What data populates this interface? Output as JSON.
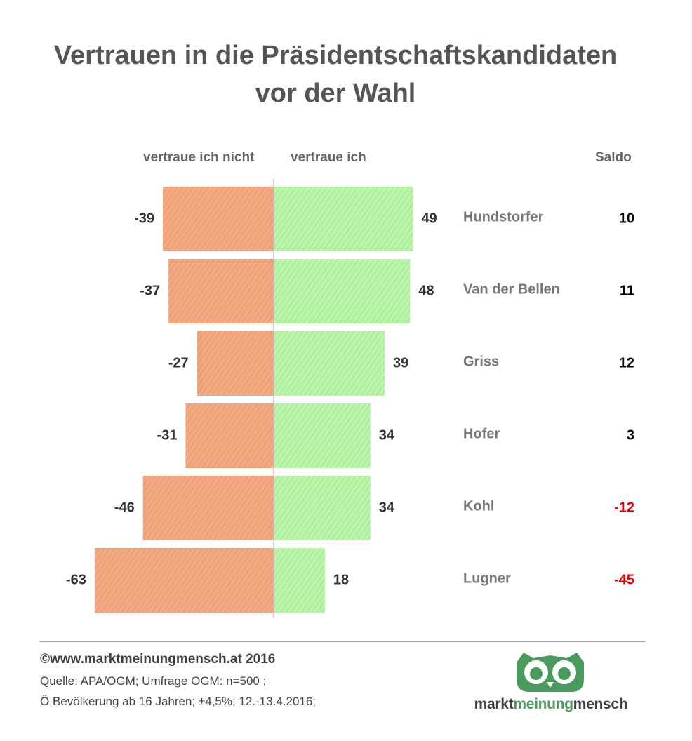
{
  "title": {
    "line1": "Vertrauen in die Präsidentschaftskandidaten",
    "line2": "vor der Wahl"
  },
  "headers": {
    "negative": "vertraue ich nicht",
    "positive": "vertraue ich",
    "saldo": "Saldo"
  },
  "chart_data": {
    "type": "bar",
    "orientation": "horizontal-diverging",
    "categories": [
      "Hundstorfer",
      "Van der Bellen",
      "Griss",
      "Hofer",
      "Kohl",
      "Lugner"
    ],
    "series": [
      {
        "name": "vertraue ich nicht",
        "values": [
          -39,
          -37,
          -27,
          -31,
          -46,
          -63
        ]
      },
      {
        "name": "vertraue ich",
        "values": [
          49,
          48,
          39,
          34,
          34,
          18
        ]
      }
    ],
    "saldo": [
      10,
      11,
      12,
      3,
      -12,
      -45
    ],
    "colors": {
      "negative": "#f4a882",
      "positive": "#b9f5a8",
      "saldo_positive": "#000000",
      "saldo_negative": "#e00000",
      "category_label": "#777777"
    }
  },
  "footer": {
    "copyright": "©www.marktmeinungmensch.at 2016",
    "source_line1": "Quelle: APA/OGM; Umfrage OGM: n=500 ;",
    "source_line2": "Ö Bevölkerung ab 16 Jahren; ±4,5%; 12.-13.4.2016;"
  },
  "logo": {
    "part1": "markt",
    "part2": "meinung",
    "part3": "mensch",
    "icon": "owl-icon",
    "color": "#4a9a5e"
  }
}
